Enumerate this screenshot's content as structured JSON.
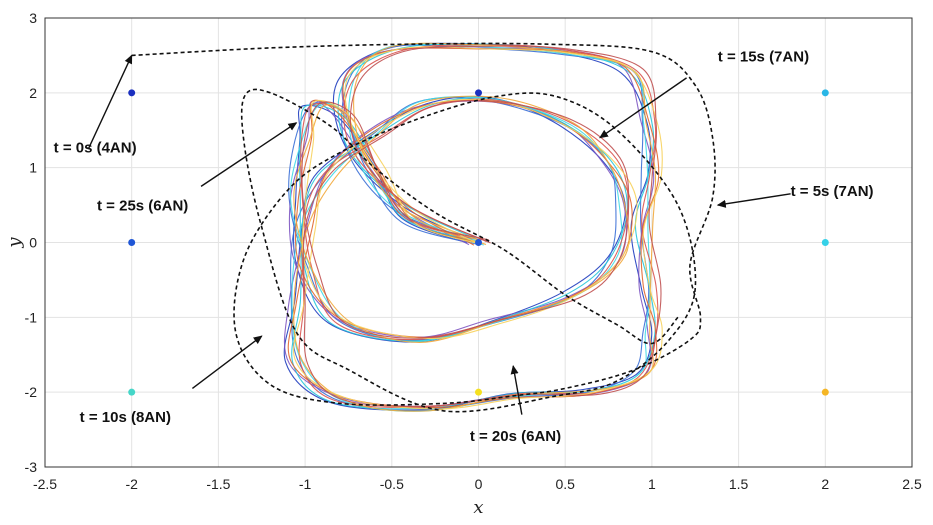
{
  "chart_data": {
    "type": "line",
    "title": "",
    "xlabel": "x",
    "ylabel": "y",
    "xlim": [
      -2.5,
      2.5
    ],
    "ylim": [
      -3,
      3
    ],
    "xticks": [
      -2.5,
      -2,
      -1.5,
      -1,
      -0.5,
      0,
      0.5,
      1,
      1.5,
      2,
      2.5
    ],
    "yticks": [
      -3,
      -2,
      -1,
      0,
      1,
      2,
      3
    ],
    "xtick_labels": [
      "-2.5",
      "-2",
      "-1.5",
      "-1",
      "-0.5",
      "0",
      "0.5",
      "1",
      "1.5",
      "2",
      "2.5"
    ],
    "ytick_labels": [
      "-3",
      "-2",
      "-1",
      "0",
      "1",
      "2",
      "3"
    ],
    "grid": true,
    "nodes": [
      {
        "x": -2,
        "y": 2,
        "color": "#1a2fbf"
      },
      {
        "x": 0,
        "y": 2,
        "color": "#1a2fbf"
      },
      {
        "x": 2,
        "y": 2,
        "color": "#29b6e6"
      },
      {
        "x": -2,
        "y": 0,
        "color": "#1f56d6"
      },
      {
        "x": 0,
        "y": 0,
        "color": "#1f56d6"
      },
      {
        "x": 2,
        "y": 0,
        "color": "#35d1e8"
      },
      {
        "x": -2,
        "y": -2,
        "color": "#45d6c8"
      },
      {
        "x": 0,
        "y": -2,
        "color": "#f5e020"
      },
      {
        "x": 2,
        "y": -2,
        "color": "#f5b625"
      }
    ],
    "series_colors": [
      "#1f3dbf",
      "#3a6fd6",
      "#7e57c2",
      "#26c6da",
      "#40d9e6",
      "#e0662e",
      "#d9534f",
      "#f2a93b",
      "#f7d25c",
      "#c05050"
    ],
    "dashed_boundary": [
      [
        -2,
        2.5
      ],
      [
        -1.2,
        2.6
      ],
      [
        -0.4,
        2.65
      ],
      [
        0.4,
        2.65
      ],
      [
        1.0,
        2.55
      ],
      [
        1.25,
        2.1
      ],
      [
        1.35,
        1.4
      ],
      [
        1.35,
        0.6
      ],
      [
        1.22,
        -0.3
      ],
      [
        1.28,
        -1.0
      ],
      [
        1.22,
        -1.3
      ],
      [
        0.9,
        -1.7
      ],
      [
        0.5,
        -1.95
      ],
      [
        0.2,
        -2.05
      ],
      [
        -0.2,
        -2.15
      ],
      [
        -0.8,
        -2.15
      ],
      [
        -1.2,
        -1.9
      ],
      [
        -1.4,
        -1.2
      ],
      [
        -1.35,
        -0.2
      ],
      [
        -1.1,
        0.7
      ],
      [
        -0.8,
        1.2
      ],
      [
        -0.35,
        1.65
      ],
      [
        0.1,
        1.95
      ],
      [
        0.45,
        1.95
      ],
      [
        0.8,
        1.5
      ],
      [
        1.15,
        0.5
      ],
      [
        1.25,
        -0.6
      ],
      [
        1.1,
        -1.3
      ],
      [
        0.8,
        -1.85
      ],
      [
        0.45,
        -2.05
      ],
      [
        -0.2,
        -2.25
      ],
      [
        -0.75,
        -1.7
      ],
      [
        -1.05,
        -1.2
      ],
      [
        -1.25,
        0.2
      ],
      [
        -1.35,
        1.3
      ],
      [
        -1.35,
        1.95
      ],
      [
        -1.2,
        2.0
      ],
      [
        -0.85,
        1.55
      ],
      [
        -0.6,
        1.0
      ],
      [
        -0.25,
        0.4
      ],
      [
        0.15,
        -0.1
      ],
      [
        0.5,
        -0.7
      ],
      [
        0.8,
        -1.1
      ],
      [
        1.0,
        -1.35
      ],
      [
        1.15,
        -1.0
      ]
    ],
    "annotations": [
      {
        "text": "t = 0s (4AN)",
        "tip": [
          -2,
          2.5
        ],
        "tail": [
          -2.25,
          1.25
        ],
        "label": [
          -2.45,
          1.2
        ]
      },
      {
        "text": "t = 5s (7AN)",
        "tip": [
          1.38,
          0.5
        ],
        "tail": [
          1.8,
          0.65
        ],
        "label": [
          1.8,
          0.62
        ]
      },
      {
        "text": "t = 10s (8AN)",
        "tip": [
          -1.25,
          -1.25
        ],
        "tail": [
          -1.65,
          -1.95
        ],
        "label": [
          -2.3,
          -2.4
        ]
      },
      {
        "text": "t = 15s (7AN)",
        "tip": [
          0.7,
          1.4
        ],
        "tail": [
          1.2,
          2.2
        ],
        "label": [
          1.38,
          2.42
        ]
      },
      {
        "text": "t = 20s (6AN)",
        "tip": [
          0.2,
          -1.65
        ],
        "tail": [
          0.25,
          -2.3
        ],
        "label": [
          -0.05,
          -2.65
        ]
      },
      {
        "text": "t = 25s (6AN)",
        "tip": [
          -1.05,
          1.6
        ],
        "tail": [
          -1.6,
          0.75
        ],
        "label": [
          -2.2,
          0.43
        ]
      }
    ]
  }
}
